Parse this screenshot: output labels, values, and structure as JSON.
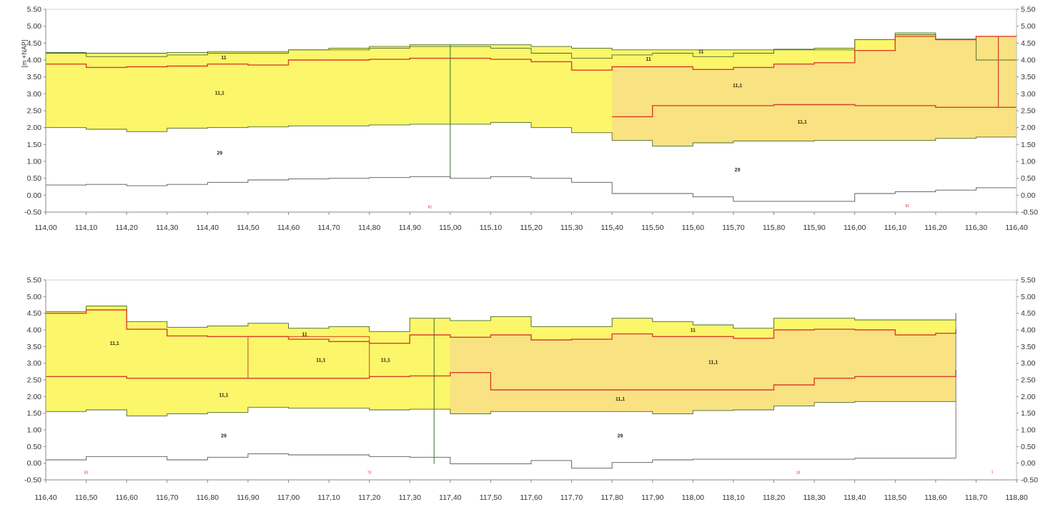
{
  "y_axis_label": "[m +NAP]",
  "chart_data": [
    {
      "type": "area",
      "xlim": [
        114.0,
        116.4
      ],
      "ylim": [
        -0.5,
        5.5
      ],
      "x_ticks": [
        "114,00",
        "114,10",
        "114,20",
        "114,30",
        "114,40",
        "114,50",
        "114,60",
        "114,70",
        "114,80",
        "114,90",
        "115,00",
        "115,10",
        "115,20",
        "115,30",
        "115,40",
        "115,50",
        "115,60",
        "115,70",
        "115,80",
        "115,90",
        "116,00",
        "116,10",
        "116,20",
        "116,30",
        "116,40"
      ],
      "y_ticks": [
        "5.50",
        "5.00",
        "4.50",
        "4.00",
        "3.50",
        "3.00",
        "2.50",
        "2.00",
        "1.50",
        "1.00",
        "0.50",
        "0.00",
        "-0.50"
      ],
      "y_tick_values": [
        5.5,
        5.0,
        4.5,
        4.0,
        3.5,
        3.0,
        2.5,
        2.0,
        1.5,
        1.0,
        0.5,
        0.0,
        -0.5
      ],
      "series": [
        {
          "x": [
            114.0,
            114.1,
            114.2,
            114.3,
            114.4,
            114.5,
            114.6,
            114.7,
            114.8,
            114.9,
            115.0,
            115.1,
            115.2,
            115.3,
            115.4,
            115.5,
            115.6,
            115.7,
            115.8,
            115.9,
            116.0,
            116.1,
            116.2,
            116.3,
            116.4
          ],
          "values": [
            4.22,
            4.2,
            4.2,
            4.22,
            4.25,
            4.25,
            4.3,
            4.35,
            4.4,
            4.45,
            4.45,
            4.45,
            4.4,
            4.35,
            4.3,
            4.3,
            4.3,
            4.3,
            4.32,
            4.35,
            4.6,
            4.8,
            4.62,
            4.7,
            4.75
          ]
        },
        {
          "x": [
            114.0,
            114.1,
            114.2,
            114.3,
            114.4,
            114.5,
            114.6,
            114.7,
            114.8,
            114.9,
            115.0,
            115.1,
            115.2,
            115.3,
            115.4,
            115.5,
            115.6,
            115.7,
            115.8,
            115.9,
            116.0,
            116.1,
            116.2,
            116.3,
            116.4
          ],
          "values": [
            4.2,
            4.1,
            4.1,
            4.15,
            4.2,
            4.2,
            4.3,
            4.3,
            4.35,
            4.4,
            4.4,
            4.35,
            4.2,
            4.05,
            4.15,
            4.2,
            4.1,
            4.2,
            4.3,
            4.3,
            4.6,
            4.75,
            4.6,
            4.0,
            4.7
          ]
        },
        {
          "x": [
            114.0,
            114.1,
            114.2,
            114.3,
            114.4,
            114.5,
            114.6,
            114.7,
            114.8,
            114.9,
            115.0,
            115.1,
            115.2,
            115.3,
            115.4,
            115.5,
            115.6,
            115.7,
            115.8,
            115.9,
            116.0,
            116.1,
            116.2,
            116.3,
            116.4
          ],
          "values": [
            3.88,
            3.78,
            3.8,
            3.82,
            3.88,
            3.85,
            4.0,
            4.0,
            4.02,
            4.05,
            4.05,
            4.02,
            3.95,
            3.7,
            3.8,
            3.8,
            3.72,
            3.78,
            3.88,
            3.92,
            4.28,
            4.7,
            4.6,
            4.7,
            4.75
          ]
        },
        {
          "x": [
            115.4,
            115.5,
            115.6,
            115.7,
            115.8,
            115.9,
            116.0,
            116.1,
            116.2,
            116.3,
            116.4
          ],
          "values": [
            2.32,
            2.65,
            2.65,
            2.65,
            2.68,
            2.68,
            2.65,
            2.65,
            2.6,
            2.6,
            2.6
          ]
        },
        {
          "x": [
            114.0,
            114.1,
            114.2,
            114.3,
            114.4,
            114.5,
            114.6,
            114.7,
            114.8,
            114.9,
            115.0,
            115.1,
            115.2,
            115.3,
            115.4,
            115.5,
            115.6,
            115.7,
            115.8,
            115.9,
            116.0,
            116.1,
            116.2,
            116.3,
            116.4
          ],
          "values": [
            2.0,
            1.95,
            1.88,
            1.98,
            2.0,
            2.02,
            2.05,
            2.05,
            2.08,
            2.1,
            2.1,
            2.15,
            2.0,
            1.85,
            1.62,
            1.45,
            1.55,
            1.6,
            1.6,
            1.62,
            1.62,
            1.62,
            1.68,
            1.72,
            1.75
          ]
        },
        {
          "x": [
            114.0,
            114.1,
            114.2,
            114.3,
            114.4,
            114.5,
            114.6,
            114.7,
            114.8,
            114.9,
            115.0,
            115.1,
            115.2,
            115.3,
            115.4,
            115.5,
            115.6,
            115.7,
            115.8,
            115.9,
            116.0,
            116.1,
            116.2,
            116.3,
            116.4
          ],
          "values": [
            0.3,
            0.32,
            0.28,
            0.32,
            0.38,
            0.45,
            0.48,
            0.5,
            0.52,
            0.55,
            0.5,
            0.55,
            0.5,
            0.38,
            0.05,
            0.05,
            -0.05,
            -0.18,
            -0.18,
            -0.18,
            0.05,
            0.1,
            0.15,
            0.22,
            0.18
          ]
        }
      ],
      "layer_labels": [
        {
          "text": "11",
          "x": 114.44,
          "y": 4.02
        },
        {
          "text": "11",
          "x": 115.49,
          "y": 3.98
        },
        {
          "text": "11",
          "x": 115.62,
          "y": 4.2
        },
        {
          "text": "11,1",
          "x": 114.43,
          "y": 2.98
        },
        {
          "text": "11,1",
          "x": 115.71,
          "y": 3.2
        },
        {
          "text": "11,1",
          "x": 115.87,
          "y": 2.12
        },
        {
          "text": "29",
          "x": 114.43,
          "y": 1.2
        },
        {
          "text": "29",
          "x": 115.71,
          "y": 0.7
        }
      ],
      "red_markers": [
        {
          "text": "81",
          "x": 114.95,
          "y": -0.38
        },
        {
          "text": "82",
          "x": 116.13,
          "y": -0.35
        }
      ]
    },
    {
      "type": "area",
      "xlim": [
        116.4,
        118.8
      ],
      "ylim": [
        -0.5,
        5.5
      ],
      "x_ticks": [
        "116,40",
        "116,50",
        "116,60",
        "116,70",
        "116,80",
        "116,90",
        "117,00",
        "117,10",
        "117,20",
        "117,30",
        "117,40",
        "117,50",
        "117,60",
        "117,70",
        "117,80",
        "117,90",
        "118,00",
        "118,10",
        "118,20",
        "118,30",
        "118,40",
        "118,50",
        "118,60",
        "118,70",
        "118,80"
      ],
      "y_ticks": [
        "5.50",
        "5.00",
        "4.50",
        "4.00",
        "3.50",
        "3.00",
        "2.50",
        "2.00",
        "1.50",
        "1.00",
        "0.50",
        "0.00",
        "-0.50"
      ],
      "y_tick_values": [
        5.5,
        5.0,
        4.5,
        4.0,
        3.5,
        3.0,
        2.5,
        2.0,
        1.5,
        1.0,
        0.5,
        0.0,
        -0.5
      ],
      "series": [
        {
          "x": [
            116.4,
            116.5,
            116.6,
            116.7,
            116.8,
            116.9,
            117.0,
            117.1,
            117.2,
            117.3,
            117.4,
            117.5,
            117.6,
            117.7,
            117.8,
            117.9,
            118.0,
            118.1,
            118.2,
            118.3,
            118.4,
            118.5,
            118.6,
            118.65
          ],
          "values": [
            4.55,
            4.72,
            4.25,
            4.08,
            4.12,
            4.2,
            4.05,
            4.1,
            3.95,
            4.35,
            4.28,
            4.4,
            4.1,
            4.1,
            4.35,
            4.25,
            4.15,
            4.05,
            4.35,
            4.35,
            4.3,
            4.3,
            4.3,
            4.5
          ]
        },
        {
          "x": [
            116.4,
            116.5,
            116.6,
            116.7,
            116.8,
            116.9,
            117.0,
            117.1,
            117.2,
            117.3,
            117.4,
            117.5,
            117.6,
            117.7,
            117.8,
            117.9,
            118.0,
            118.1,
            118.2,
            118.3,
            118.4,
            118.5,
            118.6,
            118.65
          ],
          "values": [
            4.5,
            4.6,
            4.02,
            3.82,
            3.8,
            3.8,
            3.72,
            3.65,
            3.6,
            3.85,
            3.78,
            3.85,
            3.7,
            3.72,
            3.88,
            3.8,
            3.8,
            3.75,
            4.0,
            4.02,
            4.0,
            3.85,
            3.9,
            4.02
          ]
        },
        {
          "x": [
            116.4,
            116.5,
            116.6,
            116.7,
            116.8,
            116.9,
            117.0,
            117.1,
            117.2,
            117.3,
            117.4,
            117.5,
            117.6,
            117.7,
            117.8,
            117.9,
            118.0,
            118.1,
            118.2,
            118.3,
            118.4,
            118.5,
            118.6,
            118.65
          ],
          "values": [
            2.6,
            2.6,
            2.55,
            2.55,
            2.55,
            2.55,
            2.55,
            2.55,
            2.6,
            2.62,
            2.72,
            2.2,
            2.2,
            2.2,
            2.2,
            2.2,
            2.2,
            2.2,
            2.35,
            2.55,
            2.6,
            2.6,
            2.6,
            2.8
          ]
        },
        {
          "x": [
            116.4,
            116.5,
            116.6,
            116.7,
            116.8,
            116.9,
            117.0,
            117.1,
            117.2,
            117.3,
            117.4,
            117.5,
            117.6,
            117.7,
            117.8,
            117.9,
            118.0,
            118.1,
            118.2,
            118.3,
            118.4,
            118.5,
            118.6,
            118.65
          ],
          "values": [
            1.55,
            1.6,
            1.42,
            1.48,
            1.52,
            1.68,
            1.65,
            1.65,
            1.6,
            1.62,
            1.48,
            1.55,
            1.55,
            1.55,
            1.55,
            1.48,
            1.58,
            1.6,
            1.72,
            1.82,
            1.85,
            1.85,
            1.85,
            1.85
          ]
        },
        {
          "x": [
            116.4,
            116.5,
            116.6,
            116.7,
            116.8,
            116.9,
            117.0,
            117.1,
            117.2,
            117.3,
            117.4,
            117.5,
            117.6,
            117.7,
            117.8,
            117.9,
            118.0,
            118.1,
            118.2,
            118.3,
            118.4,
            118.5,
            118.6,
            118.65
          ],
          "values": [
            0.1,
            0.2,
            0.2,
            0.1,
            0.18,
            0.28,
            0.25,
            0.25,
            0.2,
            0.18,
            -0.02,
            -0.02,
            0.08,
            -0.15,
            0.02,
            0.1,
            0.12,
            0.12,
            0.12,
            0.12,
            0.15,
            0.15,
            0.15,
            0.15
          ]
        }
      ],
      "layer_labels": [
        {
          "text": "11",
          "x": 117.04,
          "y": 3.82
        },
        {
          "text": "11",
          "x": 118.0,
          "y": 3.95
        },
        {
          "text": "11,1",
          "x": 116.57,
          "y": 3.55
        },
        {
          "text": "11,1",
          "x": 117.08,
          "y": 3.05
        },
        {
          "text": "11,1",
          "x": 117.24,
          "y": 3.05
        },
        {
          "text": "11,1",
          "x": 118.05,
          "y": 2.98
        },
        {
          "text": "11,1",
          "x": 116.84,
          "y": 2.0
        },
        {
          "text": "11,1",
          "x": 117.82,
          "y": 1.88
        },
        {
          "text": "29",
          "x": 116.84,
          "y": 0.78
        },
        {
          "text": "29",
          "x": 117.82,
          "y": 0.78
        }
      ],
      "red_markers": [
        {
          "text": "83",
          "x": 116.5,
          "y": -0.32
        },
        {
          "text": "70",
          "x": 117.2,
          "y": -0.32
        },
        {
          "text": "18",
          "x": 118.26,
          "y": -0.32
        },
        {
          "text": "1",
          "x": 118.74,
          "y": -0.3
        }
      ]
    }
  ]
}
